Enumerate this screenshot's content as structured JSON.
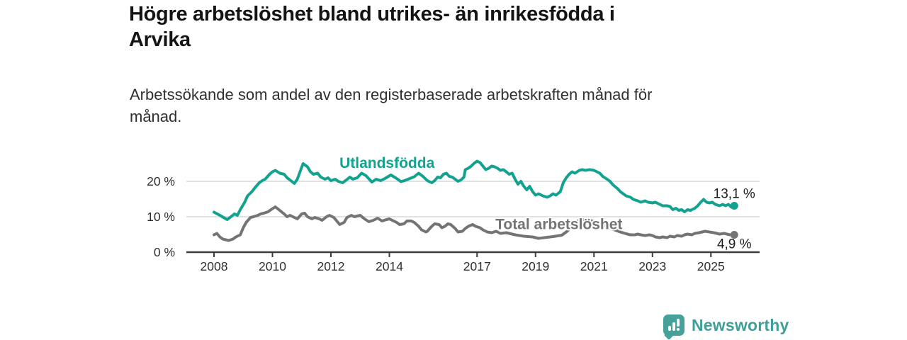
{
  "title_lines": [
    "Högre arbetslöshet bland utrikes- än inrikesfödda i",
    "Arvika"
  ],
  "subtitle_lines": [
    "Arbetssökande som andel av den registerbaserade arbetskraften månad för",
    "månad."
  ],
  "branding": {
    "logo_text": "Newsworthy",
    "logo_color": "#45A19A",
    "logo_icon": "bar-chart-speech-bubble"
  },
  "colors": {
    "title": "#141414",
    "subtitle": "#303030",
    "axis": "#3d3d3d",
    "tick_label": "#2e2e2e",
    "gridline": "#d8d8d8",
    "end_label": "#1c1c1c"
  },
  "chart_data": {
    "type": "line",
    "unit": "%",
    "x_range": [
      2008.0,
      2025.8
    ],
    "ylim": [
      0,
      27
    ],
    "grid": "horizontal",
    "legend_position": "inline-labels",
    "x_axis": {
      "ticks": [
        2008,
        2010,
        2012,
        2014,
        2017,
        2019,
        2021,
        2023,
        2025
      ],
      "labels": [
        "2008",
        "2010",
        "2012",
        "2014",
        "2017",
        "2019",
        "2021",
        "2023",
        "2025"
      ]
    },
    "y_axis": {
      "ticks": [
        0,
        10,
        20
      ],
      "labels": [
        "0 %",
        "10 %",
        "20 %"
      ]
    },
    "series": [
      {
        "name": "Utlandsfödda",
        "color": "#12A28F",
        "end_value": 13.1,
        "end_label": "13,1 %",
        "label_pos": [
          2013.92,
          23.8
        ],
        "points": [
          [
            2008.0,
            11.3
          ],
          [
            2008.2,
            10.4
          ],
          [
            2008.45,
            9.2
          ],
          [
            2008.55,
            9.8
          ],
          [
            2008.7,
            10.8
          ],
          [
            2008.8,
            10.4
          ],
          [
            2008.9,
            12.0
          ],
          [
            2009.05,
            14.1
          ],
          [
            2009.15,
            15.9
          ],
          [
            2009.3,
            17.1
          ],
          [
            2009.4,
            18.2
          ],
          [
            2009.55,
            19.6
          ],
          [
            2009.65,
            20.2
          ],
          [
            2009.75,
            20.6
          ],
          [
            2009.9,
            22.0
          ],
          [
            2010.0,
            22.7
          ],
          [
            2010.1,
            23.1
          ],
          [
            2010.25,
            22.3
          ],
          [
            2010.4,
            22.0
          ],
          [
            2010.5,
            21.0
          ],
          [
            2010.6,
            20.4
          ],
          [
            2010.75,
            19.4
          ],
          [
            2010.85,
            20.6
          ],
          [
            2011.0,
            24.0
          ],
          [
            2011.05,
            25.0
          ],
          [
            2011.2,
            24.1
          ],
          [
            2011.3,
            22.7
          ],
          [
            2011.4,
            22.0
          ],
          [
            2011.55,
            22.3
          ],
          [
            2011.65,
            21.2
          ],
          [
            2011.8,
            20.6
          ],
          [
            2011.9,
            21.0
          ],
          [
            2012.0,
            20.2
          ],
          [
            2012.15,
            20.6
          ],
          [
            2012.25,
            20.0
          ],
          [
            2012.4,
            19.6
          ],
          [
            2012.5,
            20.2
          ],
          [
            2012.65,
            21.2
          ],
          [
            2012.75,
            20.6
          ],
          [
            2012.9,
            21.0
          ],
          [
            2013.05,
            22.3
          ],
          [
            2013.2,
            21.6
          ],
          [
            2013.4,
            19.8
          ],
          [
            2013.55,
            20.6
          ],
          [
            2013.7,
            20.2
          ],
          [
            2013.85,
            20.8
          ],
          [
            2014.05,
            21.8
          ],
          [
            2014.25,
            20.8
          ],
          [
            2014.4,
            19.9
          ],
          [
            2014.55,
            20.3
          ],
          [
            2014.7,
            20.8
          ],
          [
            2014.85,
            21.3
          ],
          [
            2015.0,
            22.3
          ],
          [
            2015.15,
            21.4
          ],
          [
            2015.3,
            20.2
          ],
          [
            2015.45,
            19.6
          ],
          [
            2015.55,
            20.2
          ],
          [
            2015.65,
            21.2
          ],
          [
            2015.75,
            21.0
          ],
          [
            2015.85,
            22.0
          ],
          [
            2015.95,
            22.3
          ],
          [
            2016.05,
            21.4
          ],
          [
            2016.15,
            21.2
          ],
          [
            2016.25,
            20.6
          ],
          [
            2016.35,
            20.0
          ],
          [
            2016.45,
            20.4
          ],
          [
            2016.55,
            21.2
          ],
          [
            2016.6,
            23.3
          ],
          [
            2016.7,
            23.7
          ],
          [
            2016.8,
            24.3
          ],
          [
            2016.9,
            25.1
          ],
          [
            2017.0,
            25.7
          ],
          [
            2017.1,
            25.3
          ],
          [
            2017.2,
            24.3
          ],
          [
            2017.3,
            23.3
          ],
          [
            2017.4,
            23.7
          ],
          [
            2017.5,
            24.3
          ],
          [
            2017.6,
            24.1
          ],
          [
            2017.7,
            23.7
          ],
          [
            2017.8,
            23.1
          ],
          [
            2017.9,
            23.3
          ],
          [
            2018.0,
            22.7
          ],
          [
            2018.1,
            22.0
          ],
          [
            2018.2,
            22.3
          ],
          [
            2018.3,
            20.6
          ],
          [
            2018.4,
            19.2
          ],
          [
            2018.5,
            20.0
          ],
          [
            2018.6,
            18.6
          ],
          [
            2018.7,
            17.6
          ],
          [
            2018.8,
            18.6
          ],
          [
            2018.9,
            17.1
          ],
          [
            2019.0,
            16.1
          ],
          [
            2019.1,
            16.5
          ],
          [
            2019.25,
            15.9
          ],
          [
            2019.4,
            15.5
          ],
          [
            2019.5,
            15.9
          ],
          [
            2019.6,
            16.5
          ],
          [
            2019.7,
            16.1
          ],
          [
            2019.85,
            17.1
          ],
          [
            2019.95,
            19.6
          ],
          [
            2020.05,
            21.0
          ],
          [
            2020.15,
            22.0
          ],
          [
            2020.25,
            22.7
          ],
          [
            2020.35,
            22.3
          ],
          [
            2020.5,
            23.1
          ],
          [
            2020.6,
            23.3
          ],
          [
            2020.7,
            23.1
          ],
          [
            2020.85,
            23.3
          ],
          [
            2021.0,
            23.1
          ],
          [
            2021.1,
            22.7
          ],
          [
            2021.2,
            22.3
          ],
          [
            2021.3,
            21.4
          ],
          [
            2021.45,
            20.6
          ],
          [
            2021.55,
            20.0
          ],
          [
            2021.65,
            19.0
          ],
          [
            2021.8,
            18.0
          ],
          [
            2021.9,
            17.1
          ],
          [
            2022.0,
            16.5
          ],
          [
            2022.1,
            15.9
          ],
          [
            2022.25,
            15.5
          ],
          [
            2022.35,
            14.9
          ],
          [
            2022.5,
            14.5
          ],
          [
            2022.6,
            14.1
          ],
          [
            2022.75,
            14.5
          ],
          [
            2022.85,
            14.1
          ],
          [
            2023.0,
            13.9
          ],
          [
            2023.1,
            14.1
          ],
          [
            2023.25,
            13.5
          ],
          [
            2023.35,
            13.1
          ],
          [
            2023.5,
            13.1
          ],
          [
            2023.6,
            12.9
          ],
          [
            2023.7,
            12.0
          ],
          [
            2023.8,
            12.4
          ],
          [
            2023.9,
            11.8
          ],
          [
            2024.0,
            12.0
          ],
          [
            2024.1,
            11.4
          ],
          [
            2024.2,
            12.0
          ],
          [
            2024.3,
            11.8
          ],
          [
            2024.45,
            12.4
          ],
          [
            2024.55,
            13.1
          ],
          [
            2024.65,
            14.1
          ],
          [
            2024.75,
            14.9
          ],
          [
            2024.85,
            14.1
          ],
          [
            2024.95,
            13.9
          ],
          [
            2025.05,
            14.1
          ],
          [
            2025.15,
            13.5
          ],
          [
            2025.3,
            13.1
          ],
          [
            2025.4,
            13.5
          ],
          [
            2025.5,
            13.1
          ],
          [
            2025.6,
            13.5
          ],
          [
            2025.7,
            12.7
          ],
          [
            2025.8,
            13.1
          ]
        ]
      },
      {
        "name": "Total arbetslöshet",
        "color": "#747474",
        "end_value": 4.9,
        "end_label": "4,9 %",
        "label_pos": [
          2019.8,
          6.5
        ],
        "points": [
          [
            2008.0,
            4.9
          ],
          [
            2008.1,
            5.3
          ],
          [
            2008.2,
            4.3
          ],
          [
            2008.3,
            3.7
          ],
          [
            2008.5,
            3.3
          ],
          [
            2008.65,
            3.7
          ],
          [
            2008.75,
            4.3
          ],
          [
            2008.9,
            4.9
          ],
          [
            2009.0,
            6.9
          ],
          [
            2009.1,
            8.4
          ],
          [
            2009.25,
            9.8
          ],
          [
            2009.35,
            10.0
          ],
          [
            2009.5,
            10.4
          ],
          [
            2009.6,
            10.8
          ],
          [
            2009.7,
            11.0
          ],
          [
            2009.85,
            11.4
          ],
          [
            2009.95,
            12.0
          ],
          [
            2010.1,
            12.8
          ],
          [
            2010.25,
            11.8
          ],
          [
            2010.4,
            10.8
          ],
          [
            2010.5,
            10.0
          ],
          [
            2010.6,
            10.4
          ],
          [
            2010.75,
            9.8
          ],
          [
            2010.85,
            9.4
          ],
          [
            2011.0,
            10.8
          ],
          [
            2011.1,
            11.0
          ],
          [
            2011.2,
            10.0
          ],
          [
            2011.35,
            9.4
          ],
          [
            2011.45,
            9.8
          ],
          [
            2011.6,
            9.4
          ],
          [
            2011.7,
            9.0
          ],
          [
            2011.85,
            10.0
          ],
          [
            2011.95,
            10.4
          ],
          [
            2012.1,
            9.8
          ],
          [
            2012.2,
            8.8
          ],
          [
            2012.3,
            7.8
          ],
          [
            2012.45,
            8.4
          ],
          [
            2012.55,
            9.8
          ],
          [
            2012.7,
            10.4
          ],
          [
            2012.8,
            10.0
          ],
          [
            2013.0,
            10.4
          ],
          [
            2013.15,
            9.4
          ],
          [
            2013.3,
            8.6
          ],
          [
            2013.45,
            9.0
          ],
          [
            2013.6,
            9.6
          ],
          [
            2013.75,
            8.8
          ],
          [
            2013.9,
            9.2
          ],
          [
            2014.0,
            9.4
          ],
          [
            2014.1,
            9.0
          ],
          [
            2014.25,
            8.4
          ],
          [
            2014.35,
            7.8
          ],
          [
            2014.5,
            8.0
          ],
          [
            2014.6,
            8.8
          ],
          [
            2014.75,
            8.8
          ],
          [
            2014.85,
            8.4
          ],
          [
            2015.0,
            7.3
          ],
          [
            2015.1,
            6.3
          ],
          [
            2015.25,
            5.7
          ],
          [
            2015.3,
            5.9
          ],
          [
            2015.45,
            7.3
          ],
          [
            2015.55,
            8.0
          ],
          [
            2015.7,
            7.8
          ],
          [
            2015.8,
            6.9
          ],
          [
            2015.9,
            7.3
          ],
          [
            2016.0,
            8.0
          ],
          [
            2016.1,
            7.8
          ],
          [
            2016.25,
            6.7
          ],
          [
            2016.35,
            5.7
          ],
          [
            2016.5,
            5.9
          ],
          [
            2016.6,
            6.7
          ],
          [
            2016.7,
            7.3
          ],
          [
            2016.85,
            7.8
          ],
          [
            2016.95,
            7.3
          ],
          [
            2017.1,
            6.9
          ],
          [
            2017.2,
            6.3
          ],
          [
            2017.35,
            5.7
          ],
          [
            2017.5,
            5.5
          ],
          [
            2017.65,
            5.9
          ],
          [
            2017.8,
            5.3
          ],
          [
            2018.0,
            5.5
          ],
          [
            2018.3,
            4.9
          ],
          [
            2018.6,
            4.5
          ],
          [
            2018.9,
            4.3
          ],
          [
            2019.1,
            3.9
          ],
          [
            2019.3,
            4.1
          ],
          [
            2019.6,
            4.4
          ],
          [
            2019.9,
            4.8
          ],
          [
            2020.1,
            6.0
          ],
          [
            2020.3,
            8.2
          ],
          [
            2020.5,
            9.0
          ],
          [
            2020.7,
            9.2
          ],
          [
            2020.9,
            8.9
          ],
          [
            2021.1,
            8.4
          ],
          [
            2021.3,
            7.8
          ],
          [
            2021.5,
            7.0
          ],
          [
            2021.7,
            6.3
          ],
          [
            2021.9,
            5.7
          ],
          [
            2022.1,
            5.2
          ],
          [
            2022.25,
            4.9
          ],
          [
            2022.4,
            4.9
          ],
          [
            2022.5,
            5.1
          ],
          [
            2022.6,
            4.9
          ],
          [
            2022.75,
            4.7
          ],
          [
            2022.9,
            4.9
          ],
          [
            2023.0,
            4.7
          ],
          [
            2023.1,
            4.3
          ],
          [
            2023.25,
            4.1
          ],
          [
            2023.35,
            4.3
          ],
          [
            2023.5,
            4.1
          ],
          [
            2023.6,
            4.5
          ],
          [
            2023.75,
            4.3
          ],
          [
            2023.85,
            4.7
          ],
          [
            2024.0,
            4.5
          ],
          [
            2024.1,
            4.9
          ],
          [
            2024.2,
            5.1
          ],
          [
            2024.35,
            4.9
          ],
          [
            2024.45,
            5.3
          ],
          [
            2024.6,
            5.5
          ],
          [
            2024.7,
            5.7
          ],
          [
            2024.8,
            5.9
          ],
          [
            2024.95,
            5.7
          ],
          [
            2025.1,
            5.5
          ],
          [
            2025.2,
            5.3
          ],
          [
            2025.3,
            5.1
          ],
          [
            2025.45,
            5.3
          ],
          [
            2025.55,
            5.1
          ],
          [
            2025.65,
            4.9
          ],
          [
            2025.8,
            4.9
          ]
        ]
      }
    ]
  }
}
